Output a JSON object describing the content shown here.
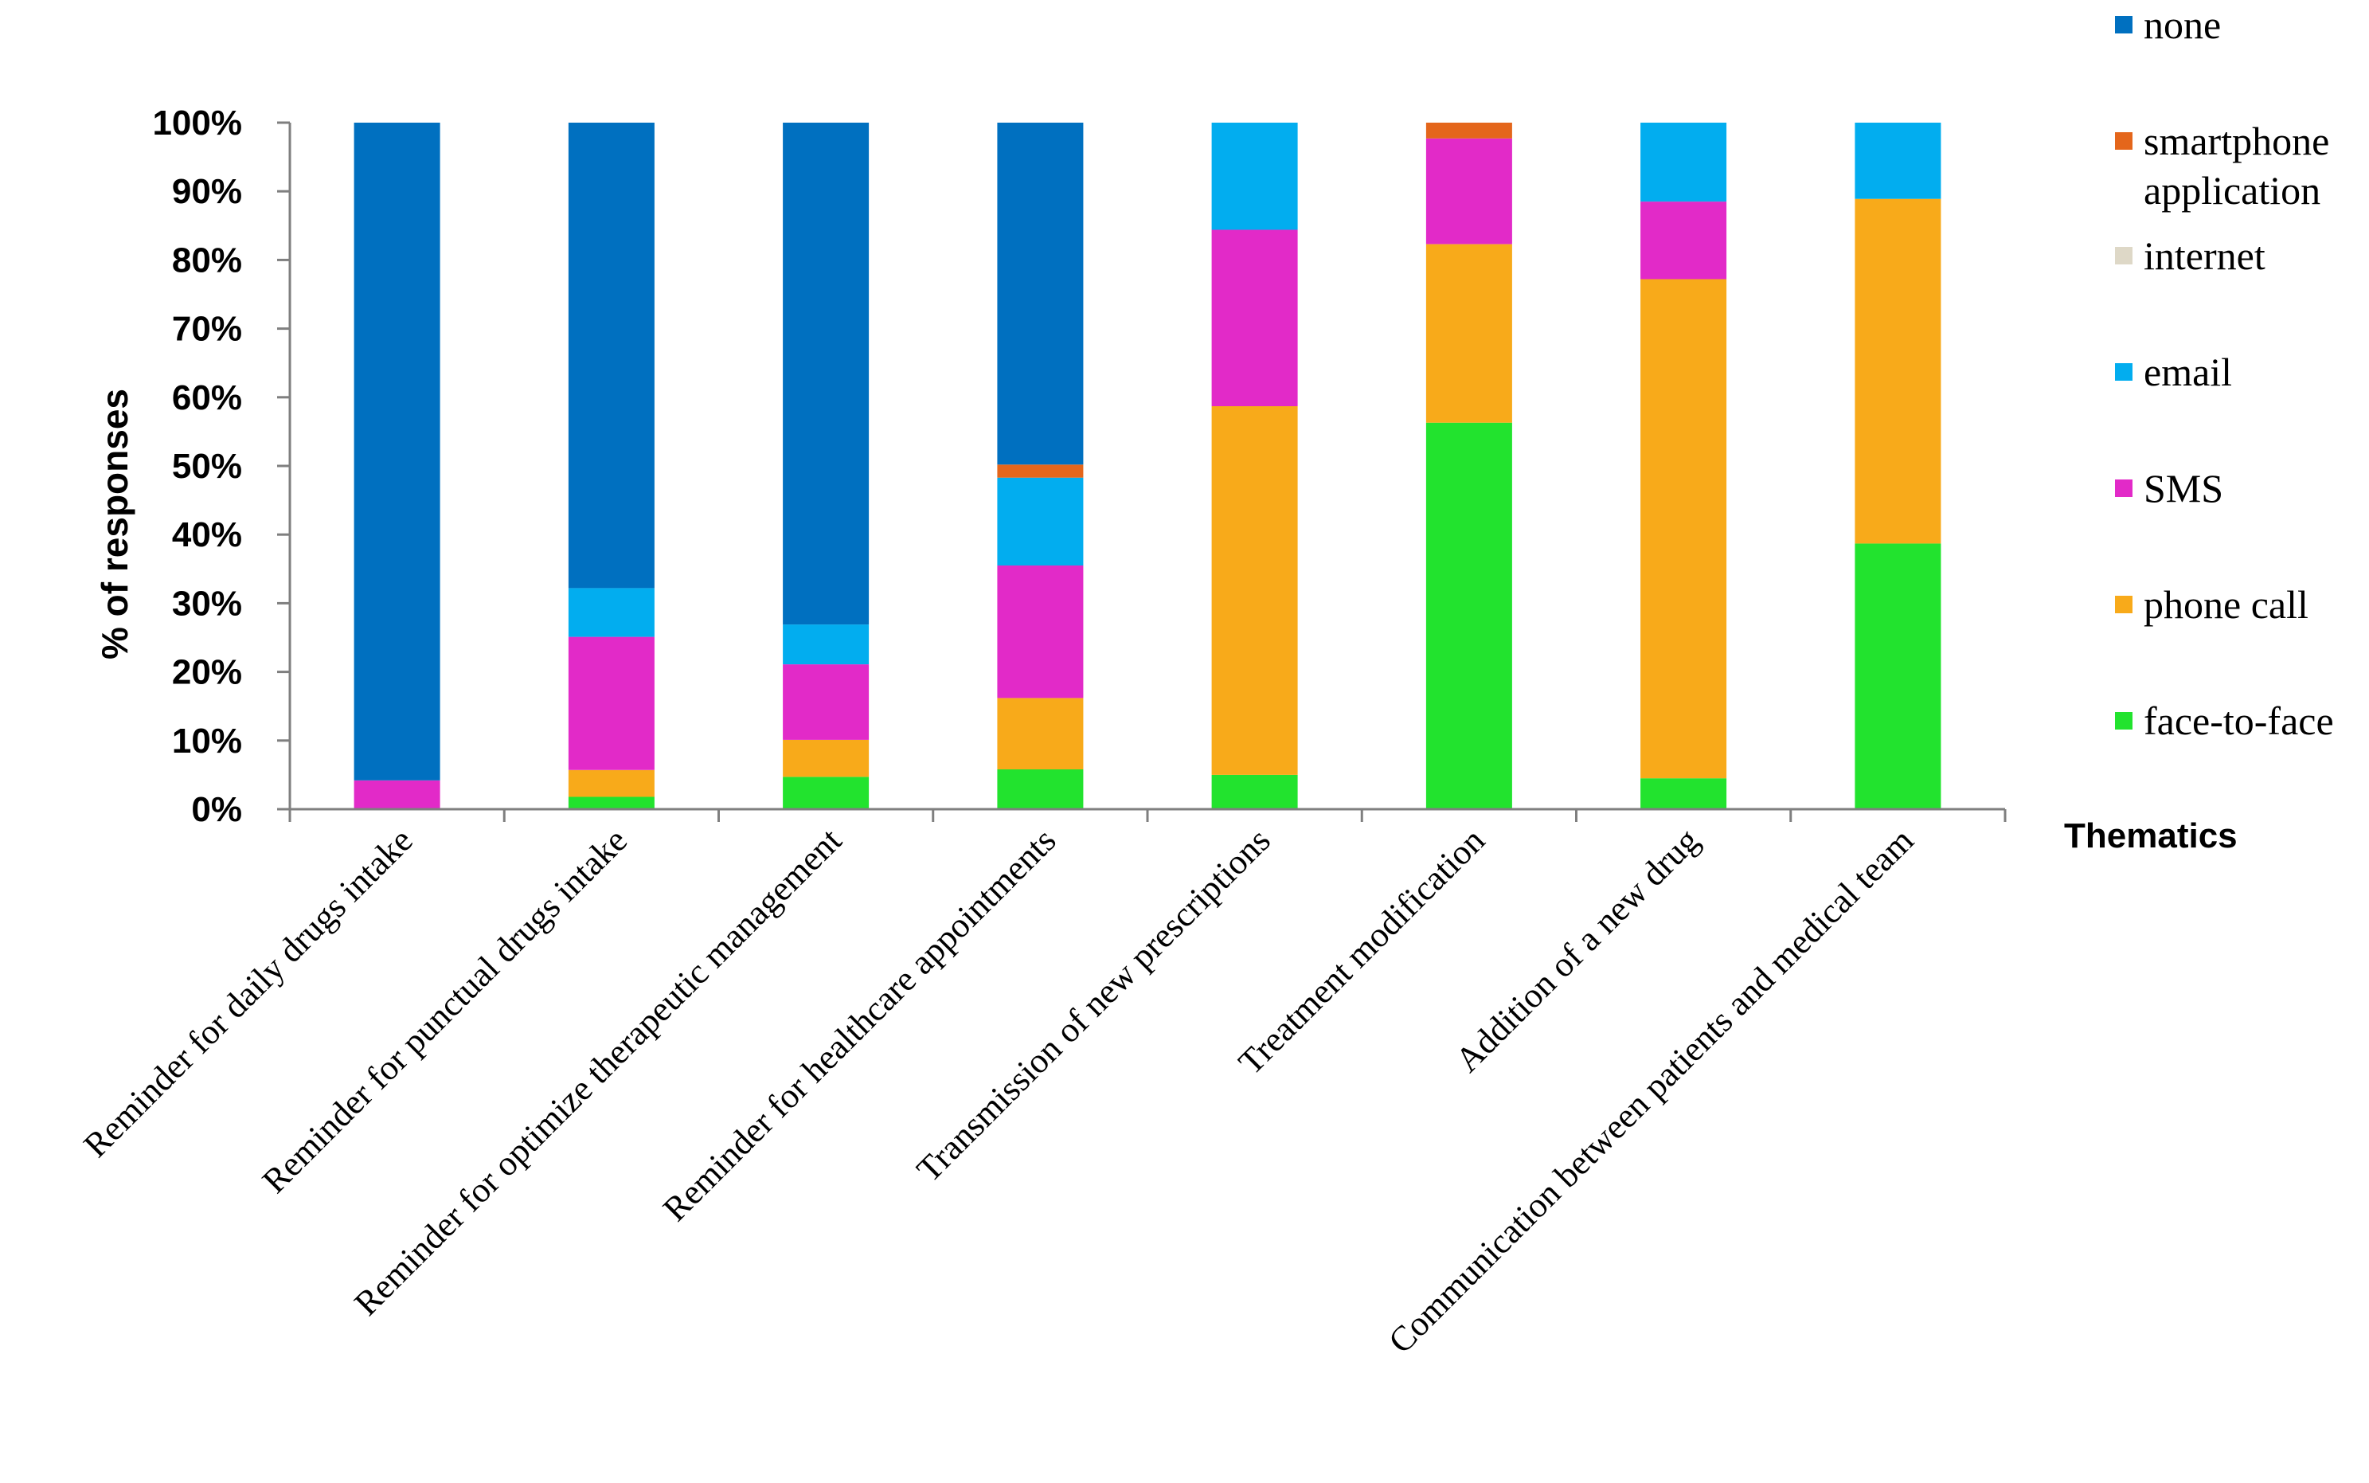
{
  "chart_data": {
    "type": "bar",
    "stacked": true,
    "title": "",
    "xlabel": "Thematics",
    "ylabel": "% of responses",
    "ylim": [
      0,
      100
    ],
    "y_ticks": [
      "0%",
      "10%",
      "20%",
      "30%",
      "40%",
      "50%",
      "60%",
      "70%",
      "80%",
      "90%",
      "100%"
    ],
    "grid": false,
    "legend_position": "right",
    "categories": [
      "Reminder for daily drugs intake",
      "Reminder for punctual drugs intake",
      "Reminder for optimize therapeutic management",
      "Reminder for healthcare appointments",
      "Transmission of new prescriptions",
      "Treatment modification",
      "Addition of a new drug",
      "Communication between patients and medical team"
    ],
    "series": [
      {
        "name": "face-to-face",
        "color": "#22e32e",
        "values": [
          0,
          1.8,
          4.7,
          5.8,
          5.0,
          56.3,
          4.5,
          38.7
        ]
      },
      {
        "name": "phone call",
        "color": "#f8aa1a",
        "values": [
          0,
          3.9,
          5.4,
          10.4,
          53.7,
          26.0,
          72.7,
          50.2
        ]
      },
      {
        "name": "SMS",
        "color": "#e22ac8",
        "values": [
          4.2,
          19.4,
          11.0,
          19.3,
          25.7,
          15.4,
          11.3,
          0
        ]
      },
      {
        "name": "email",
        "color": "#02adef",
        "values": [
          0,
          7.1,
          5.8,
          12.8,
          15.6,
          0,
          11.5,
          11.1
        ]
      },
      {
        "name": "internet",
        "color": "#ded8c7",
        "values": [
          0,
          0,
          0,
          0,
          0,
          0,
          0,
          0
        ]
      },
      {
        "name": "smartphone application",
        "color": "#e4661b",
        "values": [
          0,
          0,
          0,
          1.9,
          0,
          2.3,
          0,
          0
        ]
      },
      {
        "name": "none",
        "color": "#0070c0",
        "values": [
          95.8,
          67.8,
          73.1,
          49.8,
          0,
          0,
          0,
          0
        ]
      }
    ],
    "legend": [
      {
        "lines": [
          "none"
        ],
        "color": "#0070c0"
      },
      {
        "lines": [
          "smartphone",
          "application"
        ],
        "color": "#e4661b"
      },
      {
        "lines": [
          "internet"
        ],
        "color": "#ded8c7"
      },
      {
        "lines": [
          "email"
        ],
        "color": "#02adef"
      },
      {
        "lines": [
          "SMS"
        ],
        "color": "#e22ac8"
      },
      {
        "lines": [
          "phone call"
        ],
        "color": "#f8aa1a"
      },
      {
        "lines": [
          "face-to-face"
        ],
        "color": "#22e32e"
      }
    ]
  }
}
